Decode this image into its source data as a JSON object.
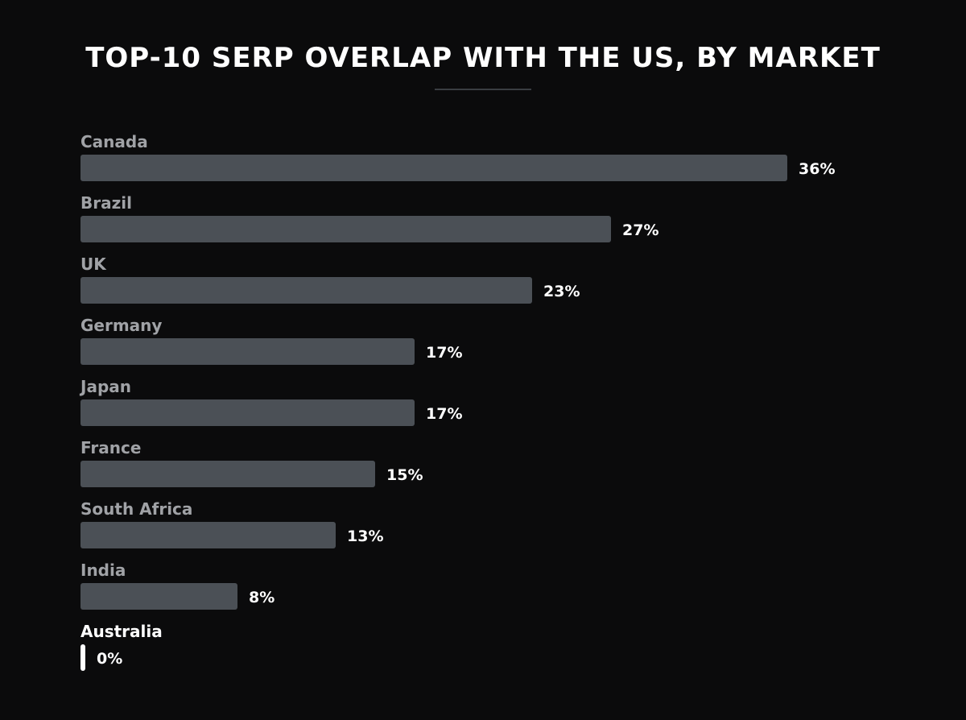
{
  "chart_data": {
    "type": "bar",
    "orientation": "horizontal",
    "title": "TOP-10 SERP OVERLAP WITH THE US, BY MARKET",
    "categories": [
      "Canada",
      "Brazil",
      "UK",
      "Germany",
      "Japan",
      "France",
      "South Africa",
      "India",
      "Australia"
    ],
    "values": [
      36,
      27,
      23,
      17,
      17,
      15,
      13,
      8,
      0
    ],
    "value_labels": [
      "36%",
      "27%",
      "23%",
      "17%",
      "17%",
      "15%",
      "13%",
      "8%",
      "0%"
    ],
    "unit": "%",
    "xlim": [
      0,
      41
    ],
    "highlight": "Australia",
    "grid": false,
    "legend": "none",
    "colors": {
      "background": "#0b0b0c",
      "bar": "#4b5056",
      "highlight_bar": "#ffffff",
      "category_label": "#a0a2a6",
      "highlight_label": "#ffffff",
      "value_label": "#ffffff",
      "title": "#ffffff"
    }
  }
}
